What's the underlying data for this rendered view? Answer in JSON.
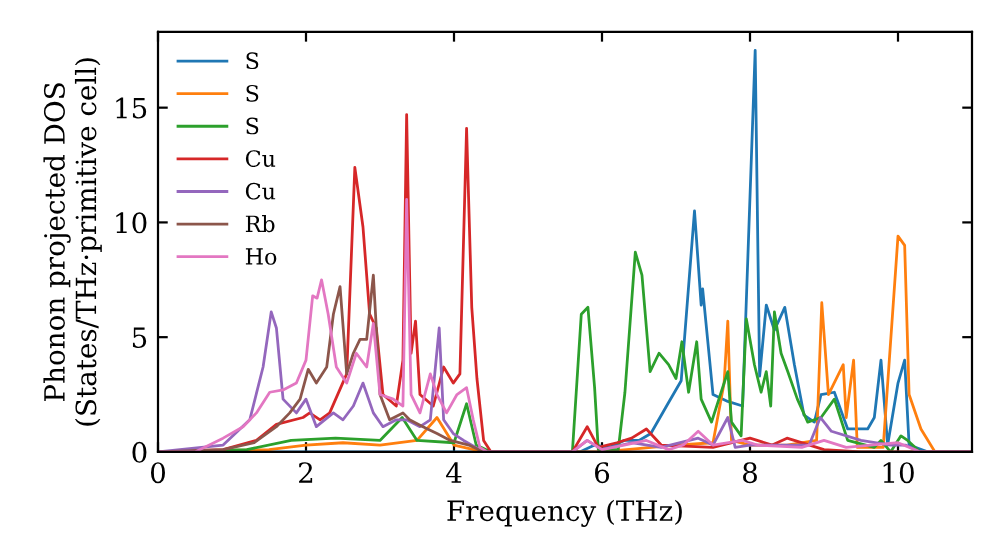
{
  "chart_data": {
    "type": "line",
    "xlabel": "Frequency (THz)",
    "ylabel": "Phonon projected DOS\n(States/THz·primitive cell)",
    "xlim": [
      0,
      11
    ],
    "ylim": [
      0,
      18.3
    ],
    "xticks": [
      0,
      2,
      4,
      6,
      8,
      10
    ],
    "yticks": [
      0,
      5,
      10,
      15
    ],
    "legend": "top left",
    "grid": false,
    "marker": "none",
    "line_style": "solid",
    "series": [
      {
        "name": "S",
        "color": "#1f77b4",
        "x": [
          0,
          5.7,
          5.9,
          6.1,
          6.3,
          6.5,
          6.66,
          6.89,
          7.07,
          7.25,
          7.34,
          7.36,
          7.5,
          7.7,
          7.9,
          8.07,
          8.13,
          8.22,
          8.33,
          8.47,
          8.6,
          8.73,
          8.87,
          8.96,
          9.14,
          9.32,
          9.59,
          9.68,
          9.77,
          9.86,
          10.0,
          10.09,
          10.15,
          10.4,
          11
        ],
        "values": [
          0,
          0,
          0.3,
          0.2,
          0.5,
          0.5,
          0.8,
          2.1,
          3.1,
          10.5,
          6.4,
          7.1,
          2.5,
          2.2,
          2.0,
          17.5,
          3.3,
          6.4,
          5.3,
          6.3,
          3.8,
          1.6,
          1.3,
          2.5,
          2.6,
          1.0,
          1.0,
          1.5,
          4.0,
          0.3,
          3.0,
          4.0,
          0.3,
          0,
          0
        ]
      },
      {
        "name": "S",
        "color": "#ff7f0e",
        "x": [
          0,
          1.5,
          2.0,
          2.5,
          3.0,
          3.5,
          3.77,
          4.0,
          4.4,
          6.0,
          7.0,
          7.5,
          7.65,
          7.7,
          7.75,
          8.0,
          8.5,
          8.9,
          8.97,
          9.06,
          9.26,
          9.3,
          9.4,
          9.45,
          9.8,
          10.0,
          10.09,
          10.15,
          10.31,
          10.5,
          11
        ],
        "values": [
          0,
          0.1,
          0.3,
          0.4,
          0.3,
          0.5,
          1.5,
          0.3,
          0,
          0,
          0.3,
          0.4,
          3.0,
          5.7,
          0.5,
          0.3,
          0.3,
          0.5,
          6.5,
          2.5,
          3.8,
          1.5,
          4.0,
          0.2,
          0.2,
          9.4,
          9.0,
          2.5,
          1.0,
          0,
          0
        ]
      },
      {
        "name": "S",
        "color": "#2ca02c",
        "x": [
          0,
          1.2,
          1.8,
          2.4,
          3.0,
          3.3,
          3.5,
          4.0,
          4.17,
          4.3,
          4.5,
          5.6,
          5.72,
          5.81,
          5.9,
          5.95,
          6.22,
          6.31,
          6.45,
          6.54,
          6.65,
          6.77,
          6.9,
          7.0,
          7.08,
          7.17,
          7.28,
          7.34,
          7.48,
          7.61,
          7.7,
          7.75,
          7.88,
          7.95,
          8.06,
          8.15,
          8.22,
          8.28,
          8.33,
          8.42,
          8.51,
          8.64,
          8.78,
          8.96,
          9.14,
          9.32,
          9.68,
          9.77,
          9.9,
          10.04,
          10.13,
          10.3,
          11
        ],
        "values": [
          0,
          0.1,
          0.5,
          0.6,
          0.5,
          1.5,
          0.5,
          0.4,
          2.1,
          0.3,
          0,
          0,
          6.0,
          6.3,
          2.8,
          0.1,
          0.1,
          2.6,
          8.7,
          7.7,
          3.5,
          4.3,
          3.8,
          3.2,
          4.8,
          2.6,
          4.8,
          2.3,
          1.3,
          2.6,
          3.5,
          1.3,
          0.7,
          5.8,
          3.8,
          2.6,
          3.5,
          2.0,
          6.1,
          4.3,
          3.5,
          2.3,
          1.3,
          1.5,
          2.3,
          0.5,
          0.2,
          0.5,
          0,
          0.7,
          0.5,
          0,
          0
        ]
      },
      {
        "name": "Cu",
        "color": "#d62728",
        "x": [
          0,
          0.88,
          1.33,
          1.6,
          1.96,
          2.05,
          2.19,
          2.32,
          2.55,
          2.66,
          2.77,
          2.86,
          2.95,
          3.04,
          3.22,
          3.31,
          3.36,
          3.42,
          3.48,
          3.54,
          3.72,
          3.86,
          3.99,
          4.08,
          4.17,
          4.24,
          4.31,
          4.4,
          4.5,
          5.6,
          5.8,
          5.95,
          6.2,
          6.4,
          6.6,
          6.8,
          7.5,
          8.0,
          8.3,
          8.5,
          9.0,
          9.5,
          11
        ],
        "values": [
          0,
          0.1,
          0.5,
          1.2,
          1.5,
          1.7,
          1.4,
          1.7,
          3.4,
          12.4,
          9.8,
          6.0,
          5.4,
          2.5,
          2.0,
          4.0,
          14.7,
          4.3,
          5.7,
          2.5,
          2.0,
          3.7,
          3.0,
          3.4,
          14.1,
          6.3,
          3.2,
          0.5,
          0,
          0,
          1.1,
          0.2,
          0.4,
          0.6,
          1.0,
          0.3,
          0.2,
          0.6,
          0.3,
          0.6,
          0.1,
          0,
          0
        ]
      },
      {
        "name": "Cu",
        "color": "#9467bd",
        "x": [
          0,
          0.88,
          1.24,
          1.42,
          1.53,
          1.6,
          1.69,
          1.87,
          2.0,
          2.14,
          2.37,
          2.5,
          2.64,
          2.77,
          2.91,
          3.04,
          3.22,
          3.36,
          3.54,
          3.68,
          3.8,
          3.86,
          3.99,
          4.13,
          4.4,
          5.6,
          5.8,
          6.0,
          6.4,
          6.8,
          7.3,
          7.5,
          7.7,
          7.8,
          8.0,
          8.8,
          8.95,
          9.1,
          9.5,
          9.9,
          10.1,
          10.3,
          11
        ],
        "values": [
          0,
          0.3,
          1.4,
          3.7,
          6.1,
          5.4,
          2.3,
          1.7,
          2.3,
          1.1,
          1.7,
          1.4,
          2.0,
          3.0,
          1.7,
          1.1,
          1.4,
          1.4,
          1.1,
          1.4,
          5.4,
          1.4,
          0.8,
          0.5,
          0,
          0,
          0.5,
          0.1,
          0.4,
          0.2,
          0.6,
          0.3,
          1.5,
          0.2,
          0.3,
          0.3,
          1.5,
          0.9,
          0.5,
          0.3,
          0.3,
          0,
          0
        ]
      },
      {
        "name": "Rb",
        "color": "#8c564b",
        "x": [
          0,
          0.88,
          1.3,
          1.6,
          1.78,
          1.92,
          2.03,
          2.14,
          2.28,
          2.37,
          2.46,
          2.55,
          2.64,
          2.73,
          2.82,
          2.91,
          3.0,
          3.13,
          3.31,
          3.4,
          3.58,
          3.77,
          3.95,
          4.2,
          4.4,
          11
        ],
        "values": [
          0,
          0.1,
          0.4,
          1.1,
          1.7,
          2.3,
          3.6,
          3.0,
          3.7,
          6.0,
          7.2,
          3.4,
          4.3,
          4.9,
          4.9,
          7.7,
          2.5,
          1.4,
          1.7,
          1.4,
          1.1,
          0.8,
          0.5,
          0.3,
          0,
          0
        ]
      },
      {
        "name": "Ho",
        "color": "#e377c2",
        "x": [
          0,
          0.5,
          0.88,
          1.15,
          1.33,
          1.51,
          1.69,
          1.87,
          2.0,
          2.09,
          2.15,
          2.21,
          2.3,
          2.41,
          2.55,
          2.68,
          2.82,
          2.91,
          3.0,
          3.18,
          3.31,
          3.36,
          3.42,
          3.54,
          3.68,
          3.77,
          3.9,
          4.04,
          4.17,
          4.26,
          4.35,
          4.45,
          5.6,
          5.8,
          6.0,
          6.3,
          6.6,
          6.9,
          7.1,
          7.3,
          7.5,
          7.9,
          8.1,
          8.7,
          9.0,
          9.3,
          10.0,
          10.3,
          11
        ],
        "values": [
          0,
          0,
          0.6,
          1.1,
          1.7,
          2.6,
          2.7,
          3.0,
          4.0,
          6.8,
          6.7,
          7.5,
          6.0,
          3.7,
          3.0,
          4.3,
          3.7,
          5.6,
          2.5,
          2.3,
          2.0,
          11.0,
          2.5,
          1.7,
          3.4,
          2.5,
          1.7,
          2.5,
          2.8,
          1.4,
          0.2,
          0,
          0,
          0.5,
          0.1,
          0.3,
          0.5,
          0.1,
          0.3,
          0.9,
          0.3,
          0.5,
          0.3,
          0.2,
          0.5,
          0.2,
          0.4,
          0,
          0
        ]
      }
    ]
  }
}
